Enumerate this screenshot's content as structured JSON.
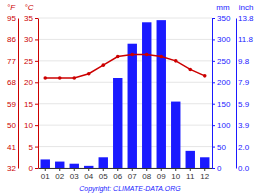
{
  "chart_data": {
    "type": "bar",
    "categories": [
      "01",
      "02",
      "03",
      "04",
      "05",
      "06",
      "07",
      "08",
      "09",
      "10",
      "11",
      "12"
    ],
    "series": [
      {
        "type": "bar",
        "color": "#1a1aff",
        "values": [
          20,
          15,
          10,
          5,
          25,
          210,
          290,
          340,
          345,
          155,
          40,
          25
        ]
      },
      {
        "type": "line",
        "axis": "y2",
        "color": "#cc0000",
        "marker": "circle",
        "values": [
          21,
          21,
          21,
          22,
          24,
          26,
          26.5,
          26.5,
          26,
          25,
          23,
          21.5
        ]
      }
    ],
    "ylabel": "mm",
    "ylim": [
      0,
      350
    ],
    "yticks": [
      0,
      50,
      100,
      150,
      200,
      250,
      300,
      350
    ],
    "y2label": "°C",
    "y2lim": [
      0,
      35
    ],
    "y2ticks": [
      0,
      5,
      10,
      15,
      20,
      25,
      30,
      35
    ],
    "y3label": "inch",
    "y3lim": [
      0,
      350
    ],
    "y3ticks": [
      {
        "value": 0,
        "label": "0.0"
      },
      {
        "value": 50,
        "label": "2.0"
      },
      {
        "value": 100,
        "label": "3.9"
      },
      {
        "value": 150,
        "label": "5.9"
      },
      {
        "value": 200,
        "label": "7.9"
      },
      {
        "value": 250,
        "label": "9.8"
      },
      {
        "value": 300,
        "label": "11.8"
      },
      {
        "value": 350,
        "label": "13.8"
      }
    ],
    "y4label": "°F",
    "y4lim": [
      0,
      35
    ],
    "y4ticks": [
      {
        "value": 0,
        "label": "32"
      },
      {
        "value": 5,
        "label": "41"
      },
      {
        "value": 10,
        "label": "50"
      },
      {
        "value": 15,
        "label": "59"
      },
      {
        "value": 20,
        "label": "68"
      },
      {
        "value": 25,
        "label": "77"
      },
      {
        "value": 30,
        "label": "86"
      },
      {
        "value": 35,
        "label": "95"
      }
    ],
    "grid": true,
    "annotations": [
      "Copyright: CLIMATE-DATA.ORG"
    ]
  }
}
